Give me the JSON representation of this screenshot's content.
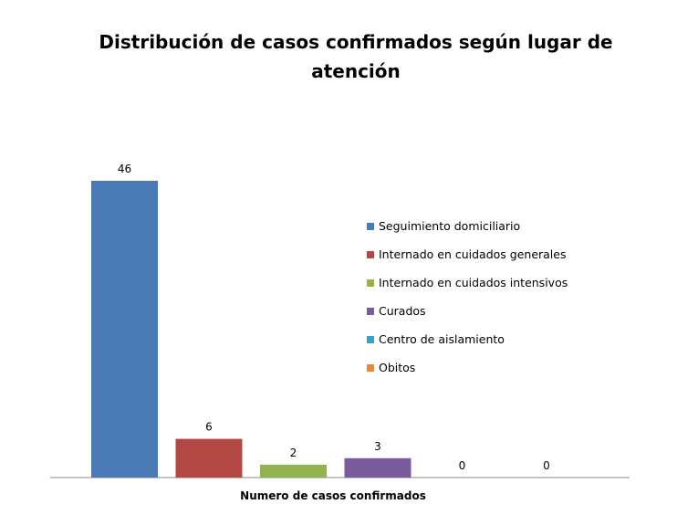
{
  "chart_data": {
    "type": "bar",
    "title": "Distribución de casos confirmados según lugar de atención",
    "xlabel": "Numero de casos confirmados",
    "ylabel": "",
    "ylim": [
      0,
      46
    ],
    "grid": false,
    "legend_position": "right",
    "series": [
      {
        "name": "Seguimiento domiciliario",
        "values": [
          46
        ],
        "color": "#4A7AB5"
      },
      {
        "name": "Internado en cuidados generales",
        "values": [
          6
        ],
        "color": "#B34744"
      },
      {
        "name": "Internado en cuidados intensivos",
        "values": [
          2
        ],
        "color": "#93B351"
      },
      {
        "name": "Curados",
        "values": [
          3
        ],
        "color": "#7A5C9C"
      },
      {
        "name": "Centro de aislamiento",
        "values": [
          0
        ],
        "color": "#3EA0C0"
      },
      {
        "name": "Obitos",
        "values": [
          0
        ],
        "color": "#E8873A"
      }
    ]
  }
}
